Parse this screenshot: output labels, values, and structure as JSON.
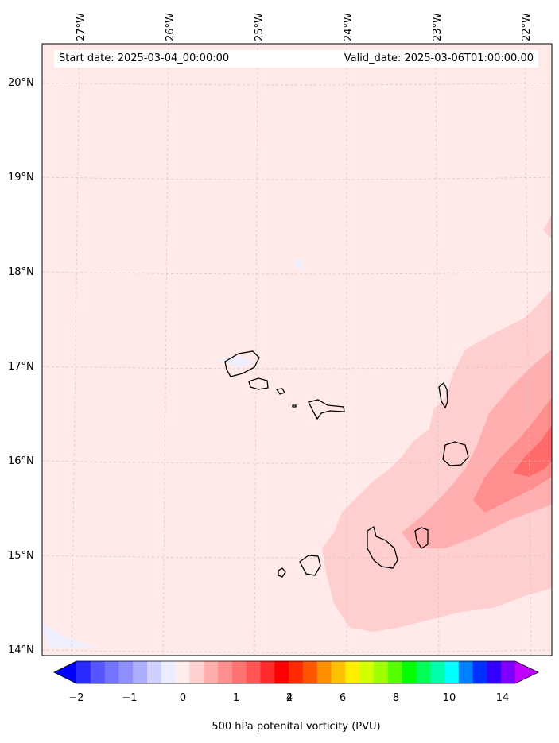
{
  "map": {
    "start_label": "Start date: 2025-03-04_00:00:00",
    "valid_label": "Valid_date: 2025-03-06T01:00:00.00",
    "lon_labels": [
      "27°W",
      "26°W",
      "25°W",
      "24°W",
      "23°W",
      "22°W"
    ],
    "lat_labels": [
      "20°N",
      "19°N",
      "18°N",
      "17°N",
      "16°N",
      "15°N",
      "14°N"
    ],
    "background_color": "#ffe9e9"
  },
  "colorbar": {
    "title": "500 hPa potenital vorticity (PVU)",
    "tick_labels": [
      "−2",
      "−1",
      "0",
      "1",
      "2",
      "4",
      "6",
      "8",
      "10",
      "14"
    ],
    "colors": [
      "#0000ff",
      "#2a2aff",
      "#5555ff",
      "#7373ff",
      "#8f8fff",
      "#aeaeff",
      "#d0d0ff",
      "#ececff",
      "#ffecec",
      "#ffd0d0",
      "#ffaeae",
      "#ff8f8f",
      "#ff7373",
      "#ff5555",
      "#ff2a2a",
      "#ff0000",
      "#ff2a00",
      "#ff5500",
      "#ff8f00",
      "#ffc000",
      "#ffee00",
      "#d4ff00",
      "#9fff00",
      "#55ff00",
      "#00ff00",
      "#00ff55",
      "#00ffaa",
      "#00ffff",
      "#0080ff",
      "#0030ff",
      "#3300ff",
      "#8000ff",
      "#c000ff"
    ]
  }
}
